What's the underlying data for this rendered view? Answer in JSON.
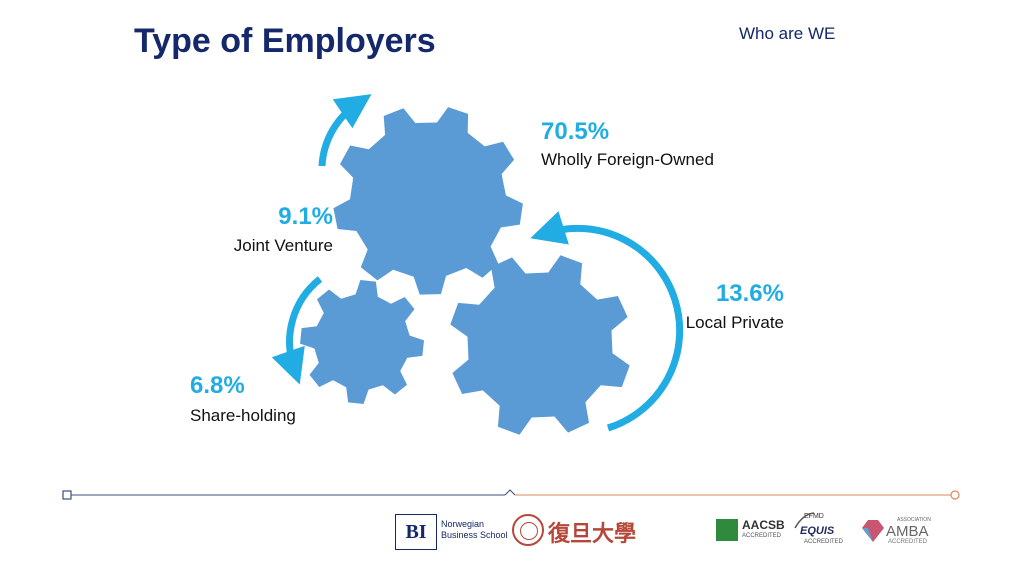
{
  "header": {
    "title": "Type of Employers",
    "section_label": "Who are WE"
  },
  "segments": [
    {
      "percent": "70.5%",
      "label": "Wholly Foreign-Owned"
    },
    {
      "percent": "9.1%",
      "label": "Joint Venture"
    },
    {
      "percent": "13.6%",
      "label": "Local Private"
    },
    {
      "percent": "6.8%",
      "label": "Share-holding"
    }
  ],
  "footer": {
    "bi_logo": {
      "mark": "BI",
      "line1": "Norwegian",
      "line2": "Business School"
    },
    "fudan_logo": {
      "text": "復旦大學"
    },
    "aacsb": {
      "name": "AACSB",
      "sub": "ACCREDITED"
    },
    "equis": {
      "top": "EFMD",
      "name": "EQUIS",
      "sub": "ACCREDITED"
    },
    "amba": {
      "top": "ASSOCIATION",
      "name": "AMBA",
      "sub": "ACCREDITED"
    }
  },
  "colors": {
    "title": "#14286b",
    "accent": "#21ade4",
    "gear": "#5b9bd5",
    "footer_left": "#3b4f7a",
    "footer_right": "#d9895a"
  }
}
